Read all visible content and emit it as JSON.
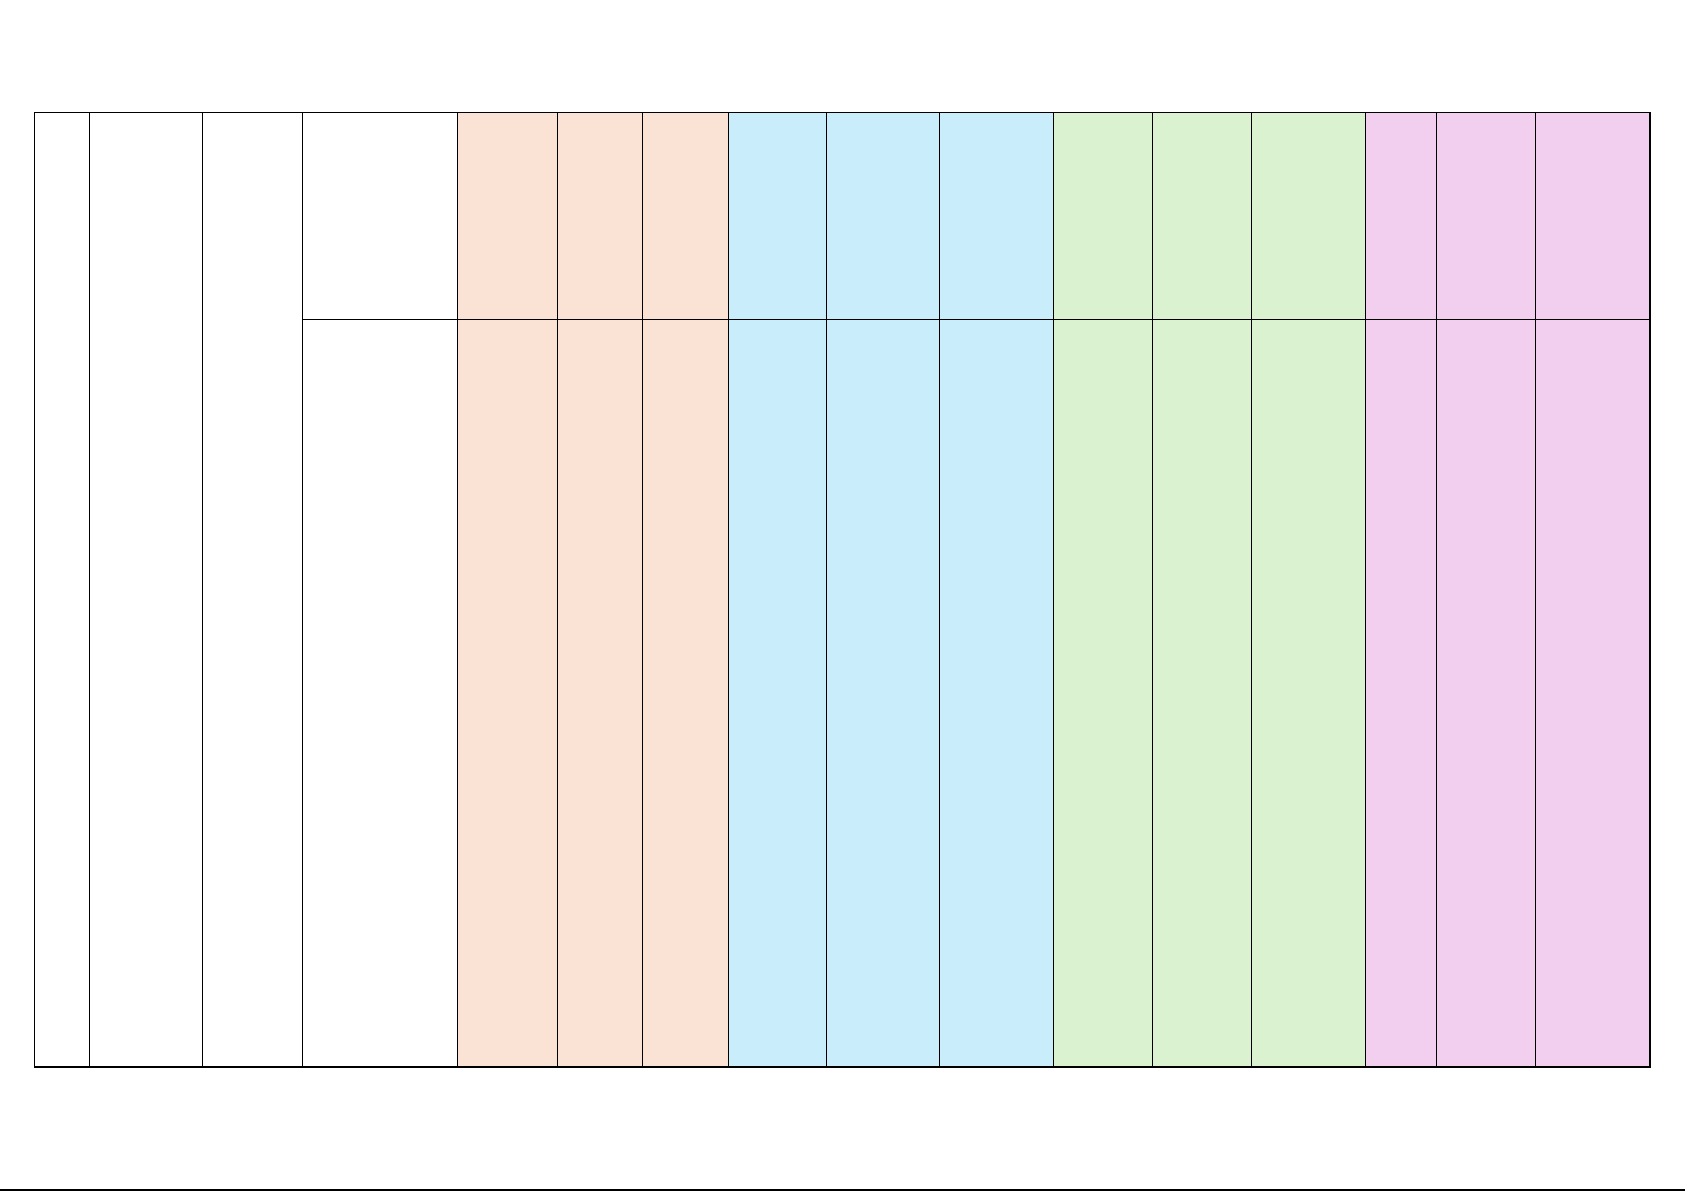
{
  "colors": {
    "white": "#FFFFFF",
    "peach": "#FAE2D5",
    "blue": "#CAEDFB",
    "green": "#DAF2D0",
    "pink": "#F2CEEF",
    "border": "#000000"
  },
  "table": {
    "column_fills": [
      "white",
      "white",
      "white",
      "white",
      "peach",
      "peach",
      "peach",
      "blue",
      "blue",
      "blue",
      "green",
      "green",
      "green",
      "pink",
      "pink",
      "pink"
    ],
    "merged_full_height_columns": 3,
    "rows": 2,
    "cells_text": []
  }
}
